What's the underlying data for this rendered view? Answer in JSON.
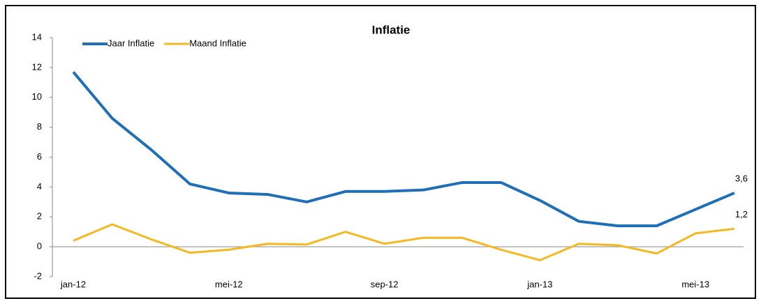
{
  "chart_data": {
    "type": "line",
    "title": "Inflatie",
    "categories": [
      "jan-12",
      null,
      null,
      null,
      "mei-12",
      null,
      null,
      null,
      "sep-12",
      null,
      null,
      null,
      "jan-13",
      null,
      null,
      null,
      "mei-13",
      null
    ],
    "series": [
      {
        "name": "Jaar Inflatie",
        "color": "#1f6fb8",
        "values": [
          11.7,
          8.6,
          6.5,
          4.2,
          3.6,
          3.5,
          3.0,
          3.7,
          3.7,
          3.8,
          4.3,
          4.3,
          3.1,
          1.7,
          1.4,
          1.4,
          2.5,
          3.6
        ],
        "value_labels": [
          null,
          null,
          null,
          null,
          null,
          null,
          null,
          null,
          null,
          null,
          null,
          null,
          null,
          null,
          null,
          null,
          null,
          "3,6"
        ]
      },
      {
        "name": "Maand Inflatie",
        "color": "#f5b820",
        "values": [
          0.4,
          1.5,
          0.5,
          -0.4,
          -0.2,
          0.2,
          0.15,
          1.0,
          0.2,
          0.6,
          0.6,
          -0.2,
          -0.9,
          0.2,
          0.1,
          -0.45,
          0.9,
          1.2
        ],
        "value_labels": [
          null,
          null,
          null,
          null,
          null,
          null,
          null,
          null,
          null,
          null,
          null,
          null,
          null,
          null,
          null,
          null,
          null,
          "1,2"
        ]
      }
    ],
    "ylim": [
      -2,
      14
    ],
    "yticks": [
      -2,
      0,
      2,
      4,
      6,
      8,
      10,
      12,
      14
    ],
    "legend": "top-left"
  }
}
